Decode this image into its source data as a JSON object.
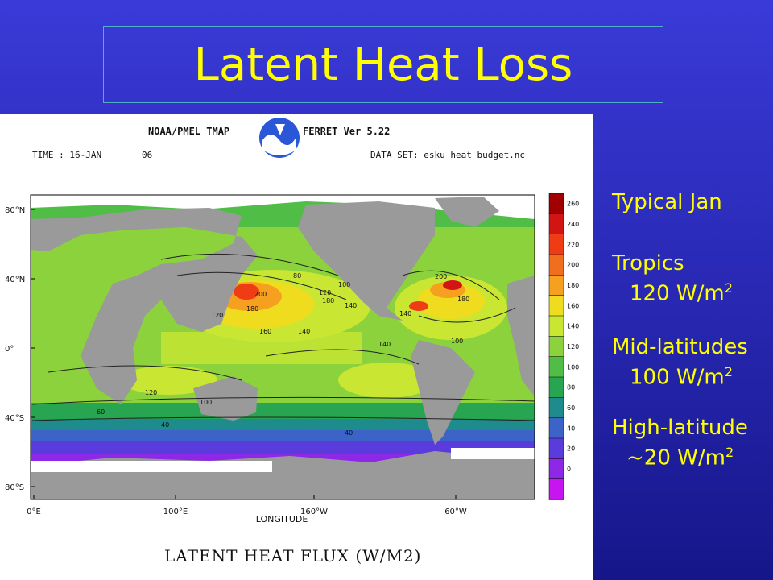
{
  "slide": {
    "title": "Latent Heat Loss"
  },
  "figure": {
    "header_left": "NOAA/PMEL TMAP",
    "header_right": "FERRET Ver 5.22",
    "time_label": "TIME : 16-JAN",
    "time_value": "06",
    "dataset_label": "DATA SET: esku_heat_budget.nc",
    "y_ticks": [
      "80°N",
      "40°N",
      "0°",
      "40°S",
      "80°S"
    ],
    "x_ticks": [
      "0°E",
      "100°E",
      "160°W",
      "60°W"
    ],
    "x_axis_label": "LONGITUDE",
    "variable_label": "LATENT HEAT FLUX (W/M2)",
    "colorbar": {
      "ticks": [
        "260",
        "240",
        "220",
        "200",
        "180",
        "160",
        "140",
        "120",
        "100",
        "80",
        "60",
        "40",
        "20",
        "0"
      ],
      "colors": [
        "#a00000",
        "#d21414",
        "#f03c14",
        "#f06e1e",
        "#f5a01e",
        "#f0dc1e",
        "#c8e632",
        "#8cd23c",
        "#50be46",
        "#28a550",
        "#1e8c8c",
        "#3c64c8",
        "#5a3cdc",
        "#8c28e6",
        "#c814f0"
      ]
    },
    "contour_labels": [
      "80",
      "120",
      "100",
      "200",
      "160",
      "140",
      "180",
      "120",
      "180",
      "140",
      "140",
      "100",
      "60",
      "40",
      "40",
      "120",
      "100",
      "140",
      "180",
      "200"
    ]
  },
  "sidebar": {
    "typical": "Typical Jan",
    "tropics_label": "Tropics",
    "tropics_value": "120 W/m",
    "tropics_exp": "2",
    "mid_label": "Mid-latitudes",
    "mid_value": "100 W/m",
    "mid_exp": "2",
    "high_label": "High-latitude",
    "high_value": "~20 W/m",
    "high_exp": "2"
  }
}
